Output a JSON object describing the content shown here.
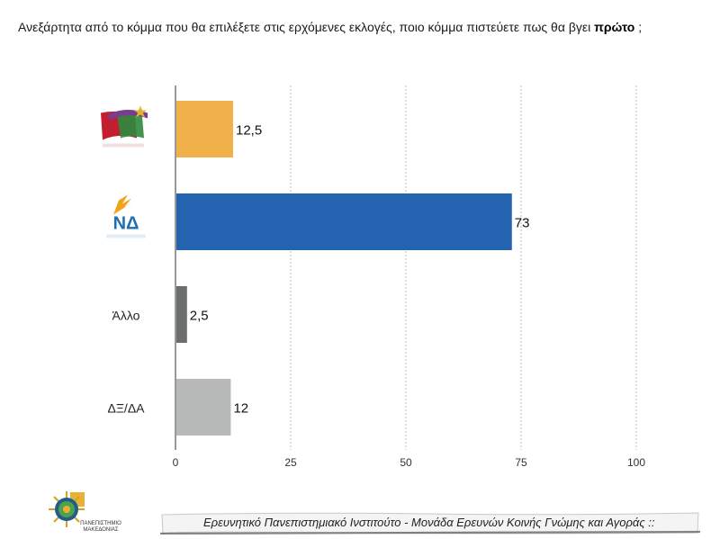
{
  "question": {
    "text_before": "Ανεξάρτητα από το κόμμα που θα επιλέξετε στις ερχόμενες εκλογές, ποιο κόμμα πιστεύετε πως θα βγει ",
    "text_bold": "πρώτο",
    "text_after": " ;"
  },
  "chart_data": {
    "type": "bar",
    "orientation": "horizontal",
    "categories": [
      "",
      "ΝΔ",
      "Άλλο",
      "ΔΞ/ΔΑ"
    ],
    "category_logos": [
      "syriza-logo",
      "nd-logo",
      null,
      null
    ],
    "values": [
      12.5,
      73,
      2.5,
      12
    ],
    "value_labels": [
      "12,5",
      "73",
      "2,5",
      "12"
    ],
    "colors": [
      "#F0B04A",
      "#2463B0",
      "#6B6E6D",
      "#B8BAB9"
    ],
    "xlim": [
      0,
      100
    ],
    "x_ticks": [
      0,
      25,
      50,
      75,
      100
    ],
    "grid": true
  },
  "footer": {
    "text": "Ερευνητικό Πανεπιστημιακό Ινστιτούτο - Μονάδα Ερευνών Κοινής Γνώμης και Αγοράς ::",
    "logo_caption_line1": "ΠΑΝΕΠΙΣΤΗΜΙΟ",
    "logo_caption_line2": "ΜΑΚΕΔΟΝΙΑΣ"
  }
}
